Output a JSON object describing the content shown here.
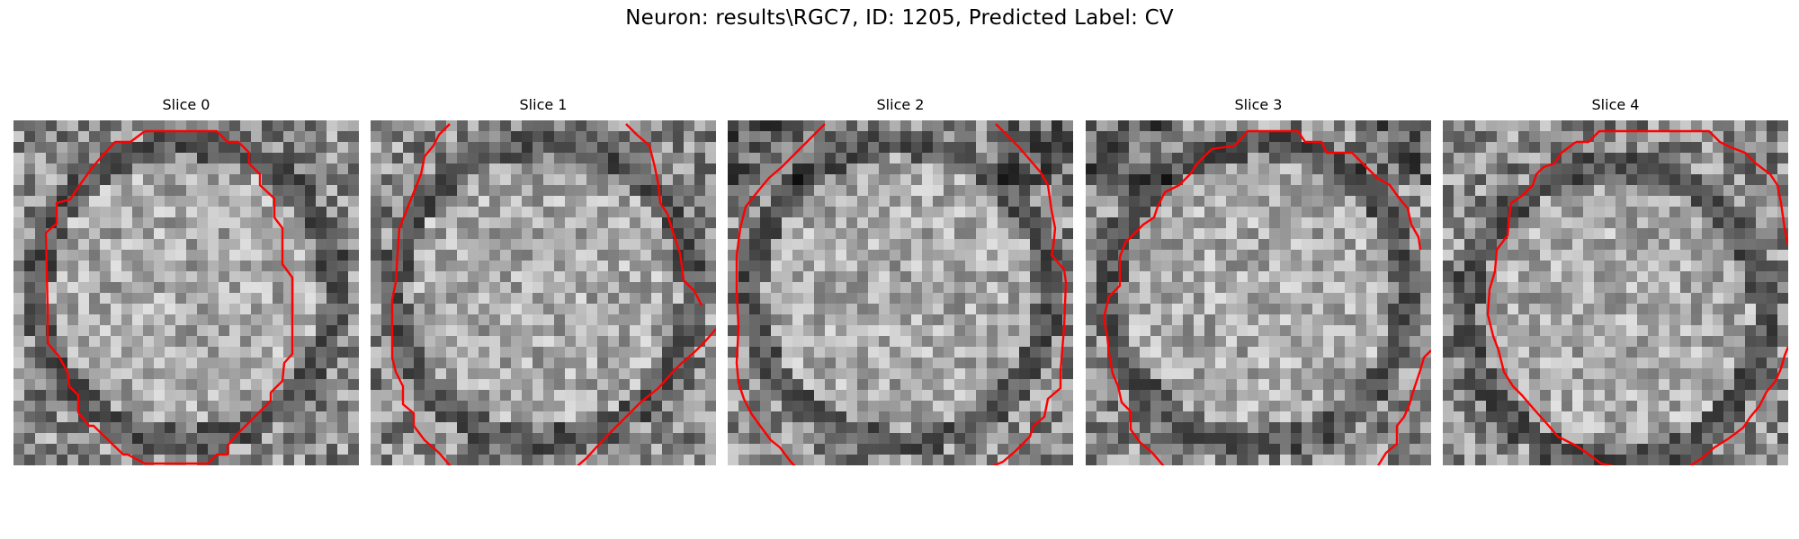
{
  "figure": {
    "title": "Neuron: results\\RGC7, ID: 1205, Predicted Label: CV"
  },
  "slices": [
    {
      "title": "Slice 0",
      "seed": 11,
      "dark_top": false
    },
    {
      "title": "Slice 1",
      "seed": 23,
      "dark_top": false
    },
    {
      "title": "Slice 2",
      "seed": 37,
      "dark_top": true
    },
    {
      "title": "Slice 3",
      "seed": 41,
      "dark_top": true
    },
    {
      "title": "Slice 4",
      "seed": 59,
      "dark_top": false
    }
  ],
  "image": {
    "grid_size": 32,
    "colormap": "gray"
  },
  "contour": {
    "color": "#ff0000"
  }
}
